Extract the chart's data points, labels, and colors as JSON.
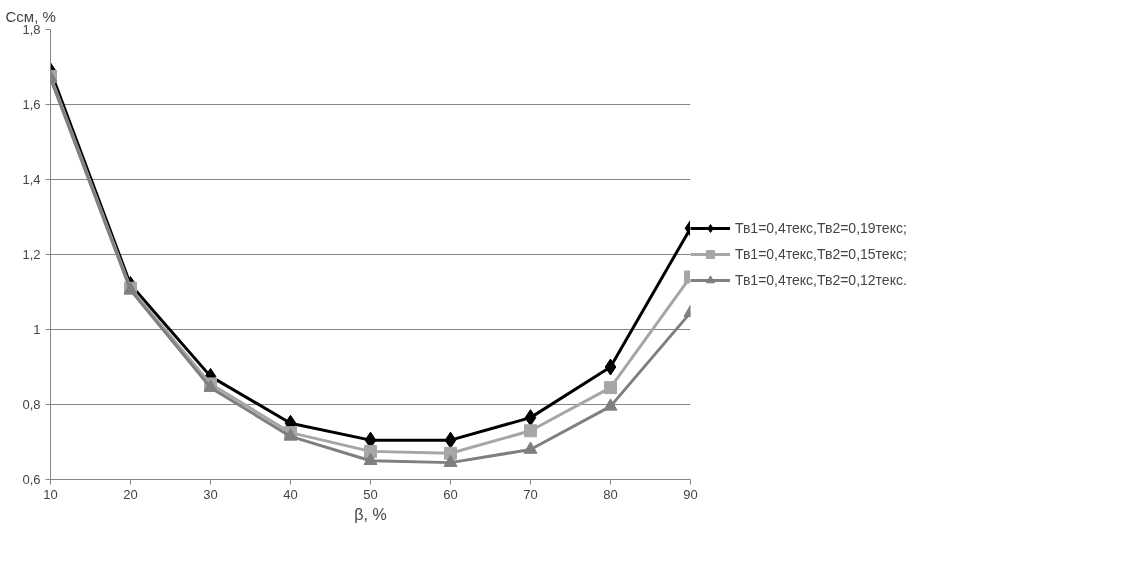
{
  "chart_data": {
    "type": "line",
    "xlabel": "β, %",
    "ylabel": "Ссм, %",
    "x": [
      10,
      20,
      30,
      40,
      50,
      60,
      70,
      80,
      90
    ],
    "series": [
      {
        "name": "Тв1=0,4текс,Тв2=0,19текс;",
        "color": "#000000",
        "marker": "diamond",
        "values": [
          1.69,
          1.12,
          0.875,
          0.75,
          0.705,
          0.705,
          0.765,
          0.9,
          1.27
        ]
      },
      {
        "name": "Тв1=0,4текс,Тв2=0,15текс;",
        "color": "#a6a6a6",
        "marker": "square",
        "values": [
          1.675,
          1.11,
          0.855,
          0.725,
          0.675,
          0.67,
          0.73,
          0.845,
          1.14
        ]
      },
      {
        "name": "Тв1=0,4текс,Тв2=0,12текс.",
        "color": "#7f7f7f",
        "marker": "triangle",
        "values": [
          1.67,
          1.105,
          0.845,
          0.715,
          0.65,
          0.645,
          0.68,
          0.795,
          1.045
        ]
      }
    ],
    "xlim": [
      10,
      90
    ],
    "xticks": [
      10,
      20,
      30,
      40,
      50,
      60,
      70,
      80,
      90
    ],
    "ylim": [
      0.6,
      1.8
    ],
    "yticks": [
      {
        "value": 0.6,
        "label": "0,6"
      },
      {
        "value": 0.8,
        "label": "0,8"
      },
      {
        "value": 1,
        "label": "1"
      },
      {
        "value": 1.2,
        "label": "1,2"
      },
      {
        "value": 1.4,
        "label": "1,4"
      },
      {
        "value": 1.6,
        "label": "1,6"
      },
      {
        "value": 1.8,
        "label": "1,8"
      }
    ],
    "grid": "y",
    "legend": "right",
    "line_style": "solid"
  }
}
